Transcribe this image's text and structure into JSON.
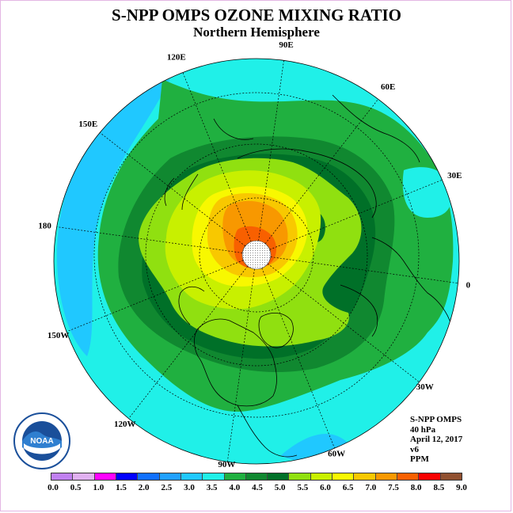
{
  "title": "S-NPP OMPS OZONE MIXING RATIO",
  "subtitle": "Northern Hemisphere",
  "info": {
    "instrument": "S-NPP OMPS",
    "level": "40 hPa",
    "date": "April 12, 2017",
    "version": "v6",
    "units": "PPM"
  },
  "logo": {
    "text": "NOAA",
    "ring_text_top": "NATIONAL OCEANIC AND ATMOSPHERIC ADMINISTRATION",
    "ring_text_bottom": "U.S. DEPARTMENT OF COMMERCE"
  },
  "longitude_labels": [
    {
      "text": "90E",
      "lon": 90
    },
    {
      "text": "60E",
      "lon": 60
    },
    {
      "text": "30E",
      "lon": 30
    },
    {
      "text": "0",
      "lon": 0
    },
    {
      "text": "30W",
      "lon": -30
    },
    {
      "text": "60W",
      "lon": -60
    },
    {
      "text": "90W",
      "lon": -90
    },
    {
      "text": "120W",
      "lon": -120
    },
    {
      "text": "150W",
      "lon": -150
    },
    {
      "text": "180",
      "lon": 180
    },
    {
      "text": "150E",
      "lon": 150
    },
    {
      "text": "120E",
      "lon": 120
    }
  ],
  "colorbar": {
    "ticks": [
      "0.0",
      "0.5",
      "1.0",
      "1.5",
      "2.0",
      "2.5",
      "3.0",
      "3.5",
      "4.0",
      "4.5",
      "5.0",
      "5.5",
      "6.0",
      "6.5",
      "7.0",
      "7.5",
      "8.0",
      "8.5",
      "9.0"
    ],
    "colors": [
      "#c080f0",
      "#e0b0f0",
      "#ff00ff",
      "#0000ff",
      "#1070ff",
      "#20a0ff",
      "#20c8ff",
      "#20f0e8",
      "#20b040",
      "#108830",
      "#007028",
      "#90e010",
      "#c8f000",
      "#f8f800",
      "#f8c800",
      "#f89800",
      "#f86000",
      "#f80000",
      "#905030"
    ]
  }
}
